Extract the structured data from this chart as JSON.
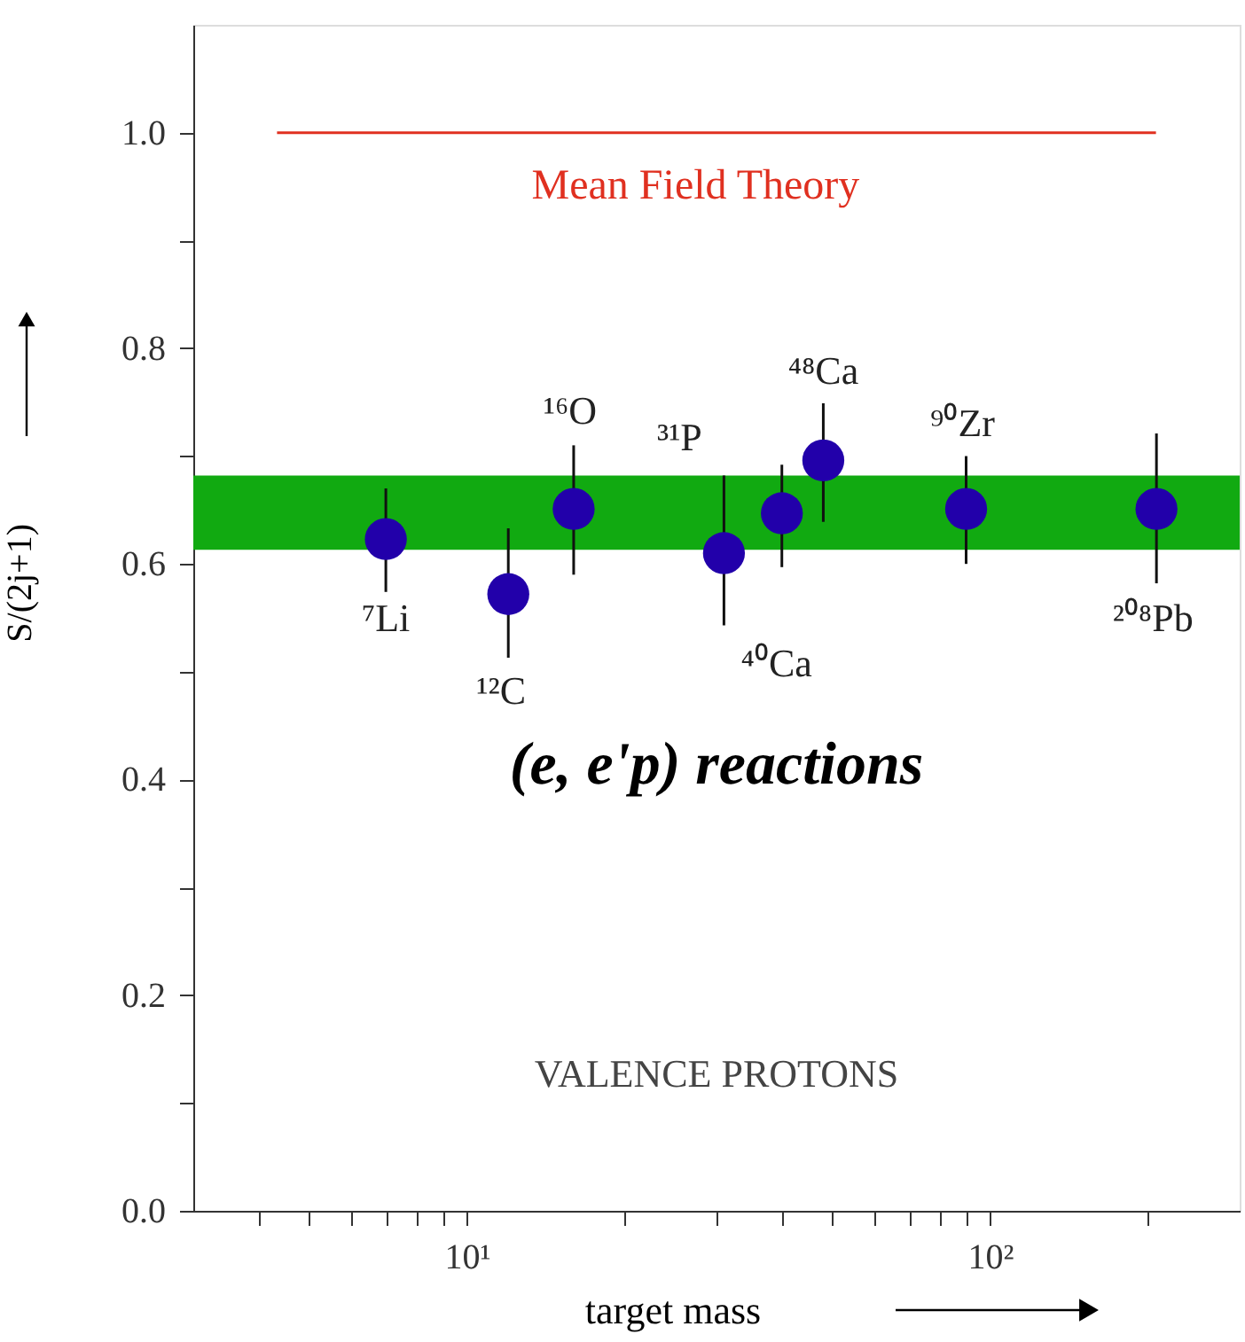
{
  "chart_data": {
    "type": "scatter",
    "xlabel": "target mass",
    "ylabel": "S/(2j+1)",
    "x": [
      7,
      12,
      16,
      31,
      40,
      48,
      90,
      208
    ],
    "series": [
      {
        "color": "#2200aa",
        "values": [
          0.623,
          0.572,
          0.651,
          0.61,
          0.647,
          0.696,
          0.651,
          0.651
        ],
        "errors": [
          [
            0.574,
            0.67
          ],
          [
            0.513,
            0.633
          ],
          [
            0.59,
            0.71
          ],
          [
            0.543,
            0.682
          ],
          [
            0.597,
            0.692
          ],
          [
            0.639,
            0.749
          ],
          [
            0.6,
            0.7
          ],
          [
            0.582,
            0.721
          ]
        ]
      }
    ],
    "log": "x",
    "marker": "circle",
    "grid": false,
    "xlim": [
      3,
      300
    ],
    "xticks": [
      {
        "value": 4,
        "label": null
      },
      {
        "value": 5,
        "label": null
      },
      {
        "value": 6,
        "label": null
      },
      {
        "value": 7,
        "label": null
      },
      {
        "value": 8,
        "label": null
      },
      {
        "value": 9,
        "label": null
      },
      {
        "value": 10,
        "label": "10¹"
      },
      {
        "value": 20,
        "label": null
      },
      {
        "value": 30,
        "label": null
      },
      {
        "value": 40,
        "label": null
      },
      {
        "value": 50,
        "label": null
      },
      {
        "value": 60,
        "label": null
      },
      {
        "value": 70,
        "label": null
      },
      {
        "value": 80,
        "label": null
      },
      {
        "value": 90,
        "label": null
      },
      {
        "value": 100,
        "label": "10²"
      },
      {
        "value": 200,
        "label": null
      }
    ],
    "ylim": [
      0,
      1.1
    ],
    "yticks": [
      {
        "value": 0,
        "label": "0.0"
      },
      {
        "value": 0.1,
        "label": null
      },
      {
        "value": 0.2,
        "label": "0.2"
      },
      {
        "value": 0.3,
        "label": null
      },
      {
        "value": 0.4,
        "label": "0.4"
      },
      {
        "value": 0.5,
        "label": null
      },
      {
        "value": 0.6,
        "label": "0.6"
      },
      {
        "value": 0.7,
        "label": null
      },
      {
        "value": 0.8,
        "label": "0.8"
      },
      {
        "value": 0.9,
        "label": null
      },
      {
        "value": 1.0,
        "label": "1.0"
      }
    ],
    "ref_lines": [
      {
        "axis": "y",
        "value": 1.0,
        "label": "Mean Field Theory",
        "color": "#e03020"
      }
    ],
    "bands": [
      {
        "axis": "y",
        "from": 0.613,
        "to": 0.682,
        "color": "#11aa11"
      }
    ],
    "annotations": [
      "⁷Li",
      "¹²C",
      "¹⁶O",
      "³¹P",
      "⁴⁰Ca",
      "⁴⁸Ca",
      "⁹⁰Zr",
      "²⁰⁸Pb",
      "(e, e'p) reactions",
      "VALENCE PROTONS"
    ]
  }
}
